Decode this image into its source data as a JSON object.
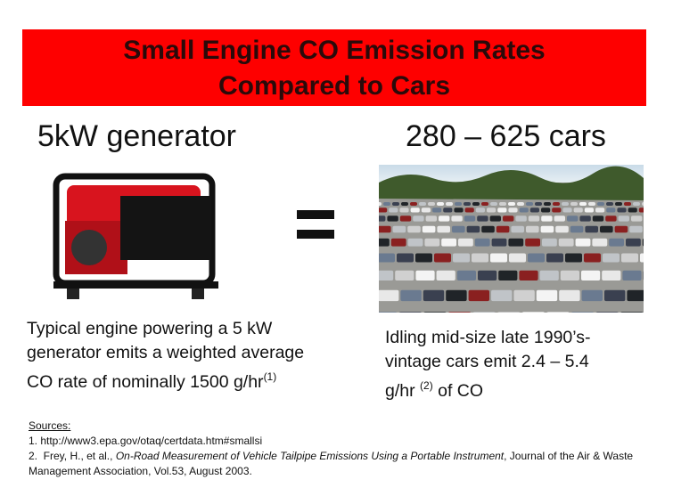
{
  "title": {
    "line1": "Small Engine CO Emission Rates",
    "line2": "Compared to Cars"
  },
  "left": {
    "heading": "5kW generator",
    "caption": {
      "line1": "Typical engine powering a 5 kW",
      "line2": "generator emits a weighted average",
      "line3": "CO rate of nominally 1500 g/hr",
      "note": "(1)"
    }
  },
  "right": {
    "heading": "280 – 625 cars",
    "caption": {
      "line1": "Idling mid-size late 1990’s-",
      "line2": "vintage cars emit 2.4 – 5.4",
      "line3a": "g/hr ",
      "note": "(2)",
      "line3b": " of CO"
    }
  },
  "sources": {
    "label": "Sources:",
    "item1": "1. http://www3.epa.gov/otaq/certdata.htm#smallsi",
    "item2": {
      "prefix": "2.  Frey, H., et al., ",
      "title": "On-Road Measurement of Vehicle Tailpipe Emissions Using a Portable Instrument",
      "suffix": ", Journal of the Air & Waste Management Association, Vol.53, August 2003."
    }
  }
}
